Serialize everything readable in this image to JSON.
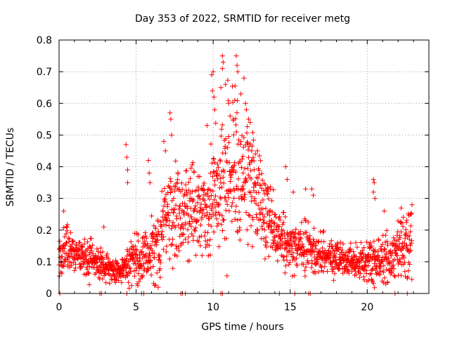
{
  "chart_data": {
    "type": "scatter",
    "title": "Day 353 of 2022, SRMTID for receiver metg",
    "xlabel": "GPS time / hours",
    "ylabel": "SRMTID / TECUs",
    "xlim": [
      0,
      24
    ],
    "ylim": [
      0,
      0.8
    ],
    "xticks": [
      0,
      5,
      10,
      15,
      20
    ],
    "yticks": [
      0,
      0.1,
      0.2,
      0.3,
      0.4,
      0.5,
      0.6,
      0.7,
      0.8
    ],
    "grid": true,
    "marker": "+",
    "color": "#ff0000",
    "series": [
      {
        "name": "metg",
        "profile_hours": [
          0,
          0.5,
          1,
          1.5,
          2,
          2.5,
          3,
          3.5,
          4,
          4.5,
          5,
          5.5,
          6,
          6.5,
          7,
          7.5,
          8,
          8.5,
          9,
          9.5,
          10,
          10.5,
          11,
          11.5,
          12,
          12.5,
          13,
          13.5,
          14,
          14.5,
          15,
          15.5,
          16,
          16.5,
          17,
          17.5,
          18,
          18.5,
          19,
          19.5,
          20,
          20.5,
          21,
          21.5,
          22,
          22.5,
          23
        ],
        "profile_mean": [
          0.11,
          0.14,
          0.13,
          0.12,
          0.11,
          0.1,
          0.09,
          0.07,
          0.07,
          0.09,
          0.11,
          0.11,
          0.13,
          0.16,
          0.22,
          0.25,
          0.24,
          0.26,
          0.26,
          0.27,
          0.3,
          0.34,
          0.38,
          0.4,
          0.38,
          0.34,
          0.3,
          0.24,
          0.19,
          0.17,
          0.15,
          0.14,
          0.14,
          0.13,
          0.12,
          0.12,
          0.11,
          0.1,
          0.1,
          0.1,
          0.1,
          0.11,
          0.11,
          0.11,
          0.13,
          0.15,
          0.15
        ],
        "profile_spread": [
          0.04,
          0.05,
          0.04,
          0.04,
          0.04,
          0.03,
          0.03,
          0.02,
          0.02,
          0.04,
          0.05,
          0.04,
          0.06,
          0.08,
          0.09,
          0.1,
          0.09,
          0.09,
          0.09,
          0.09,
          0.11,
          0.14,
          0.15,
          0.14,
          0.13,
          0.12,
          0.1,
          0.08,
          0.06,
          0.06,
          0.05,
          0.04,
          0.05,
          0.04,
          0.04,
          0.04,
          0.04,
          0.03,
          0.03,
          0.03,
          0.04,
          0.05,
          0.05,
          0.04,
          0.05,
          0.06,
          0.06
        ],
        "peaks": [
          {
            "x": 0.3,
            "y": 0.26
          },
          {
            "x": 2.9,
            "y": 0.21
          },
          {
            "x": 4.35,
            "y": 0.47
          },
          {
            "x": 4.4,
            "y": 0.43
          },
          {
            "x": 4.45,
            "y": 0.39
          },
          {
            "x": 4.45,
            "y": 0.35
          },
          {
            "x": 5.8,
            "y": 0.42
          },
          {
            "x": 5.85,
            "y": 0.38
          },
          {
            "x": 5.9,
            "y": 0.35
          },
          {
            "x": 6.8,
            "y": 0.48
          },
          {
            "x": 6.9,
            "y": 0.45
          },
          {
            "x": 7.2,
            "y": 0.57
          },
          {
            "x": 7.25,
            "y": 0.55
          },
          {
            "x": 7.3,
            "y": 0.5
          },
          {
            "x": 9.6,
            "y": 0.53
          },
          {
            "x": 9.9,
            "y": 0.69
          },
          {
            "x": 10.0,
            "y": 0.7
          },
          {
            "x": 9.95,
            "y": 0.64
          },
          {
            "x": 10.05,
            "y": 0.62
          },
          {
            "x": 10.1,
            "y": 0.58
          },
          {
            "x": 10.5,
            "y": 0.65
          },
          {
            "x": 10.6,
            "y": 0.75
          },
          {
            "x": 10.65,
            "y": 0.73
          },
          {
            "x": 10.6,
            "y": 0.71
          },
          {
            "x": 10.8,
            "y": 0.66
          },
          {
            "x": 11.0,
            "y": 0.6
          },
          {
            "x": 11.1,
            "y": 0.56
          },
          {
            "x": 11.3,
            "y": 0.55
          },
          {
            "x": 11.4,
            "y": 0.61
          },
          {
            "x": 11.5,
            "y": 0.75
          },
          {
            "x": 11.55,
            "y": 0.72
          },
          {
            "x": 11.6,
            "y": 0.7
          },
          {
            "x": 11.8,
            "y": 0.63
          },
          {
            "x": 12.0,
            "y": 0.68
          },
          {
            "x": 12.1,
            "y": 0.6
          },
          {
            "x": 12.3,
            "y": 0.55
          },
          {
            "x": 12.5,
            "y": 0.45
          },
          {
            "x": 14.7,
            "y": 0.4
          },
          {
            "x": 14.8,
            "y": 0.36
          },
          {
            "x": 15.2,
            "y": 0.32
          },
          {
            "x": 16.0,
            "y": 0.33
          },
          {
            "x": 16.4,
            "y": 0.33
          },
          {
            "x": 16.5,
            "y": 0.31
          },
          {
            "x": 20.4,
            "y": 0.36
          },
          {
            "x": 20.45,
            "y": 0.35
          },
          {
            "x": 20.4,
            "y": 0.32
          },
          {
            "x": 20.5,
            "y": 0.3
          },
          {
            "x": 21.1,
            "y": 0.26
          },
          {
            "x": 22.2,
            "y": 0.27
          },
          {
            "x": 22.9,
            "y": 0.28
          },
          {
            "x": 22.8,
            "y": 0.25
          }
        ],
        "zero_values_hours": [
          0.05,
          2.65,
          2.75,
          4.4,
          5.35,
          5.5,
          7.9,
          8.0,
          8.2,
          10.5,
          10.6,
          14.3,
          15.3,
          16.2,
          16.3,
          21.8,
          22.6
        ]
      }
    ]
  }
}
